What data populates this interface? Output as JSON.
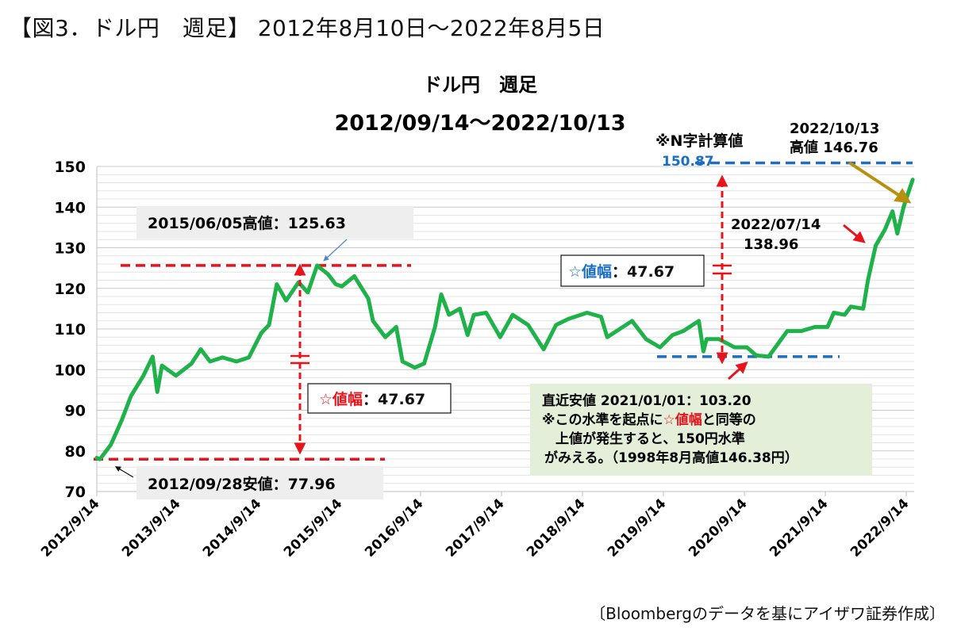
{
  "figure_title": "【図3．ドル円　週足】 2012年8月10日～2022年8月5日",
  "source_note": "〔Bloombergのデータを基にアイザワ証券作成〕",
  "chart_data": {
    "type": "line",
    "title": "ドル円　週足",
    "subtitle": "2012/09/14～2022/10/13",
    "ylim": [
      70,
      150
    ],
    "yticks": [
      70,
      80,
      90,
      100,
      110,
      120,
      130,
      140,
      150
    ],
    "ytick_labels": [
      "70",
      "80",
      "90",
      "100",
      "110",
      "120",
      "130",
      "140",
      "150"
    ],
    "xticks": [
      "2012-09-14",
      "2013-09-14",
      "2014-09-14",
      "2015-09-14",
      "2016-09-14",
      "2017-09-14",
      "2018-09-14",
      "2019-09-14",
      "2020-09-14",
      "2021-09-14",
      "2022-09-14"
    ],
    "xtick_labels": [
      "2012/9/14",
      "2013/9/14",
      "2014/9/14",
      "2015/9/14",
      "2016/9/14",
      "2017/9/14",
      "2018/9/14",
      "2019/9/14",
      "2020/9/14",
      "2021/9/14",
      "2022/9/14"
    ],
    "grid": true,
    "line_color": "#1fb24a",
    "series": [
      {
        "x": [
          "2012-09-14",
          "2012-09-28",
          "2012-11-16",
          "2013-01-04",
          "2013-02-15",
          "2013-04-12",
          "2013-05-24",
          "2013-06-14",
          "2013-07-05",
          "2013-09-06",
          "2013-11-15",
          "2013-12-27",
          "2014-02-07",
          "2014-04-04",
          "2014-06-06",
          "2014-08-01",
          "2014-09-26",
          "2014-10-31",
          "2014-12-05",
          "2015-01-16",
          "2015-03-13",
          "2015-04-24",
          "2015-06-05",
          "2015-07-24",
          "2015-08-28",
          "2015-09-25",
          "2015-11-20",
          "2015-12-18",
          "2016-01-22",
          "2016-02-12",
          "2016-04-08",
          "2016-05-27",
          "2016-06-24",
          "2016-08-19",
          "2016-09-30",
          "2016-11-18",
          "2016-12-16",
          "2017-01-20",
          "2017-03-10",
          "2017-04-14",
          "2017-05-12",
          "2017-07-07",
          "2017-09-08",
          "2017-11-03",
          "2018-01-12",
          "2018-03-23",
          "2018-05-18",
          "2018-07-13",
          "2018-10-05",
          "2018-12-07",
          "2019-01-04",
          "2019-04-26",
          "2019-06-28",
          "2019-08-30",
          "2019-10-25",
          "2019-12-13",
          "2020-02-21",
          "2020-03-13",
          "2020-03-27",
          "2020-05-22",
          "2020-07-31",
          "2020-09-25",
          "2020-11-06",
          "2021-01-01",
          "2021-03-26",
          "2021-05-28",
          "2021-07-30",
          "2021-09-24",
          "2021-10-22",
          "2021-12-10",
          "2022-01-07",
          "2022-03-04",
          "2022-03-25",
          "2022-04-29",
          "2022-06-10",
          "2022-07-14",
          "2022-08-05",
          "2022-09-02",
          "2022-09-23",
          "2022-10-13"
        ],
        "values": [
          78.3,
          77.96,
          81.5,
          87.5,
          93.5,
          98.5,
          103.2,
          94.5,
          101.0,
          98.5,
          101.5,
          105.0,
          102.0,
          103.0,
          102.0,
          103.0,
          109.0,
          111.0,
          121.0,
          117.0,
          121.5,
          119.0,
          125.63,
          123.5,
          121.0,
          120.5,
          123.0,
          120.5,
          117.5,
          112.0,
          108.0,
          110.5,
          102.0,
          100.5,
          101.5,
          110.5,
          118.5,
          113.5,
          115.0,
          108.5,
          113.5,
          114.0,
          108.0,
          113.5,
          111.0,
          105.0,
          111.0,
          112.5,
          114.0,
          113.0,
          108.0,
          112.0,
          107.5,
          105.5,
          108.5,
          109.5,
          112.0,
          104.5,
          107.5,
          107.5,
          105.5,
          105.5,
          103.5,
          103.2,
          109.5,
          109.5,
          110.5,
          110.5,
          114.0,
          113.5,
          115.5,
          115.0,
          122.0,
          130.5,
          134.5,
          138.96,
          133.5,
          140.0,
          143.5,
          146.76
        ]
      }
    ],
    "annotations": {
      "high_2015": "2015/06/05高値：125.63",
      "low_2012": "2012/09/28安値：77.96",
      "range_left": {
        "star": "☆値幅",
        "value": "：47.67"
      },
      "range_right": {
        "star": "☆値幅",
        "value": "：47.67"
      },
      "n_calc_label": "※N字計算値",
      "n_calc_value": "150.87",
      "high_2022_date": "2022/10/13",
      "high_2022_value": "高値 146.76",
      "jul_2022_date": "2022/07/14",
      "jul_2022_value": "138.96",
      "recent_low_box": {
        "line1": "直近安値 2021/01/01：103.20",
        "line2_pre": "※この水準を起点に",
        "line2_star": "☆値幅",
        "line2_post": "と同等の",
        "line3": "上値が発生すると、150円水準",
        "line4": "がみえる。（1998年8月高値146.38円）"
      }
    },
    "levels": {
      "high_2015": 125.63,
      "low_2012": 77.96,
      "recent_low": 103.2,
      "n_target": 150.87
    }
  }
}
